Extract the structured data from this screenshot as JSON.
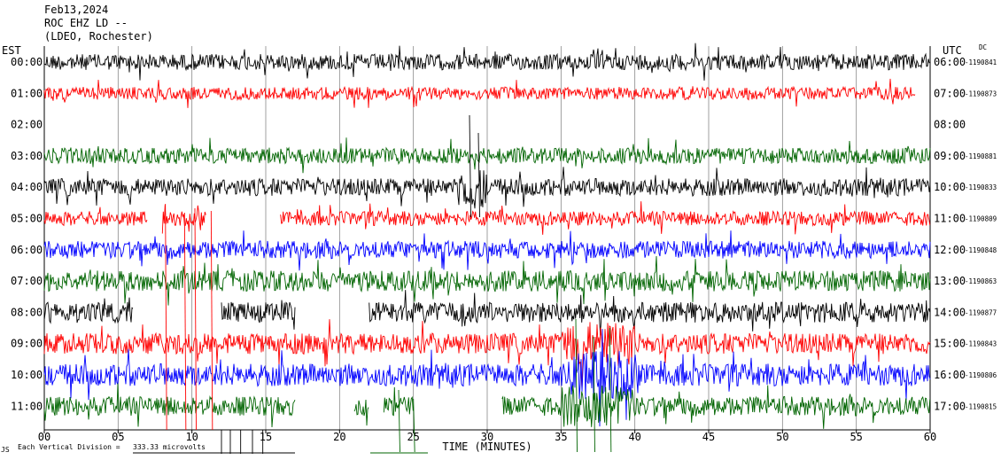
{
  "header": {
    "date": "Feb13,2024",
    "channel": "ROC EHZ LD --",
    "network": "(LDEO, Rochester)"
  },
  "left_axis_title": "EST",
  "right_axis_title": "UTC",
  "dc_title": "DC",
  "xlabel": "TIME (MINUTES)",
  "scale_note": {
    "prefix": "Each Vertical Division =",
    "value": "333.33 microvolts"
  },
  "corner_mark": "JS",
  "colors": {
    "black": "#000000",
    "red": "#ff0000",
    "blue": "#0000ff",
    "green": "#006400"
  },
  "chart_data": {
    "type": "line",
    "title": "Feb13,2024",
    "xlim": [
      0,
      60
    ],
    "x_ticks": [
      "00",
      "05",
      "10",
      "15",
      "20",
      "25",
      "30",
      "35",
      "40",
      "45",
      "50",
      "55",
      "60"
    ],
    "grid": true,
    "series": [
      {
        "est": "00:00",
        "utc": "06:00",
        "dc": "-1190841",
        "color": "black",
        "amp": 1.0,
        "segments": [
          [
            0,
            60
          ]
        ]
      },
      {
        "est": "01:00",
        "utc": "07:00",
        "dc": "-1190873",
        "color": "red",
        "amp": 0.8,
        "segments": [
          [
            0,
            59
          ]
        ]
      },
      {
        "est": "02:00",
        "utc": "08:00",
        "dc": "",
        "color": "blue",
        "amp": 0,
        "segments": []
      },
      {
        "est": "03:00",
        "utc": "09:00",
        "dc": "-1190881",
        "color": "green",
        "amp": 1.0,
        "segments": [
          [
            0,
            60
          ]
        ]
      },
      {
        "est": "04:00",
        "utc": "10:00",
        "dc": "-1190833",
        "color": "black",
        "amp": 1.1,
        "segments": [
          [
            0,
            60
          ]
        ]
      },
      {
        "est": "05:00",
        "utc": "11:00",
        "dc": "-1190809",
        "color": "red",
        "amp": 0.9,
        "segments": [
          [
            0,
            7
          ],
          [
            8,
            11
          ],
          [
            16,
            60
          ]
        ]
      },
      {
        "est": "06:00",
        "utc": "12:00",
        "dc": "-1190848",
        "color": "blue",
        "amp": 1.1,
        "segments": [
          [
            0,
            60
          ]
        ]
      },
      {
        "est": "07:00",
        "utc": "13:00",
        "dc": "-1190863",
        "color": "green",
        "amp": 1.3,
        "segments": [
          [
            0,
            60
          ]
        ]
      },
      {
        "est": "08:00",
        "utc": "14:00",
        "dc": "-1190877",
        "color": "black",
        "amp": 1.3,
        "segments": [
          [
            0,
            6
          ],
          [
            12,
            17
          ],
          [
            22,
            60
          ]
        ]
      },
      {
        "est": "09:00",
        "utc": "15:00",
        "dc": "-1190843",
        "color": "red",
        "amp": 1.3,
        "segments": [
          [
            0,
            60
          ]
        ]
      },
      {
        "est": "10:00",
        "utc": "16:00",
        "dc": "-1190806",
        "color": "blue",
        "amp": 1.4,
        "segments": [
          [
            0,
            60
          ]
        ]
      },
      {
        "est": "11:00",
        "utc": "17:00",
        "dc": "-1190815",
        "color": "green",
        "amp": 1.2,
        "segments": [
          [
            0,
            17
          ],
          [
            21,
            22
          ],
          [
            23,
            25
          ],
          [
            31,
            60
          ]
        ]
      }
    ]
  }
}
